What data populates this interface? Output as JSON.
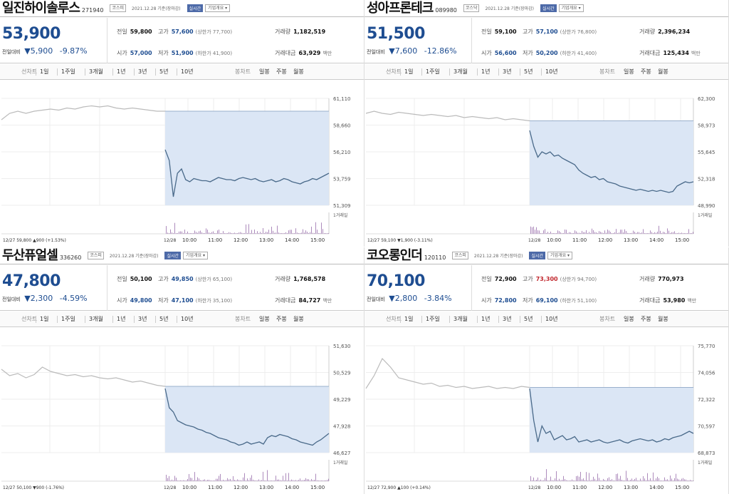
{
  "colors": {
    "price_blue": "#1e4d91",
    "up_red": "#c1272d",
    "fill": "#dbe6f5",
    "line": "#4a6a8a",
    "volume": "#8a5aa0"
  },
  "common": {
    "chart_tabs": [
      "선차트",
      "1일",
      "1주일",
      "3개월",
      "1년",
      "3년",
      "5년",
      "10년"
    ],
    "bar_tabs": [
      "봉차트",
      "일봉",
      "주봉",
      "월봉"
    ],
    "change_label": "전일대비",
    "vol_unit": "백만",
    "time_ticks": [
      "12/28",
      "10:00",
      "11:00",
      "12:00",
      "13:00",
      "14:00",
      "15:00"
    ],
    "stat_labels": {
      "prev": "전일",
      "high": "고가",
      "volume": "거래량",
      "open": "시가",
      "low": "저가",
      "amount": "거래대금"
    },
    "upper_label": "상한가",
    "lower_label": "하한가",
    "amount_unit": "백만"
  },
  "stocks": [
    {
      "name": "일진하이솔루스",
      "code": "271940",
      "market": "코스피",
      "date": "2021.12.28 기준(장마감)",
      "btn1": "실시간",
      "btn2": "기업개요 ▾",
      "price": "53,900",
      "change": "▼5,900",
      "rate": "-9.87%",
      "prev": "59,800",
      "high": "57,600",
      "upper": "(상한가 77,700)",
      "volume": "1,182,519",
      "open": "57,000",
      "low": "51,900",
      "lower": "(하한가 41,900)",
      "amount": "63,929",
      "y_ticks": [
        "61,110",
        "58,660",
        "56,210",
        "53,759",
        "51,309"
      ],
      "vol_label": "1거래일",
      "prev_info": "12/27 59,800 ▲900 (+1.53%)",
      "prev_line": [
        0.8,
        0.86,
        0.88,
        0.86,
        0.88,
        0.89,
        0.9,
        0.89,
        0.91,
        0.9,
        0.92,
        0.93,
        0.92,
        0.93,
        0.91,
        0.9,
        0.91,
        0.9,
        0.89,
        0.88,
        0.88
      ],
      "today_line": [
        0.52,
        0.42,
        0.08,
        0.3,
        0.34,
        0.24,
        0.22,
        0.25,
        0.24,
        0.23,
        0.23,
        0.22,
        0.24,
        0.26,
        0.25,
        0.24,
        0.24,
        0.23,
        0.25,
        0.26,
        0.25,
        0.24,
        0.25,
        0.23,
        0.22,
        0.23,
        0.24,
        0.22,
        0.23,
        0.25,
        0.24,
        0.22,
        0.21,
        0.2,
        0.22,
        0.23,
        0.25,
        0.24,
        0.26,
        0.28,
        0.3
      ],
      "prev_close": 0.88
    },
    {
      "name": "성아프론테크",
      "code": "089980",
      "market": "코스닥",
      "date": "2021.12.28 기준(장마감)",
      "btn1": "실시간",
      "btn2": "기업개요 ▾",
      "price": "51,500",
      "change": "▼7,600",
      "rate": "-12.86%",
      "prev": "59,100",
      "high": "57,100",
      "upper": "(상한가 76,800)",
      "volume": "2,396,234",
      "open": "56,600",
      "low": "50,200",
      "lower": "(하한가 41,400)",
      "amount": "125,434",
      "y_ticks": [
        "62,300",
        "58,973",
        "55,645",
        "52,318",
        "48,990"
      ],
      "vol_label": "1거래일",
      "prev_info": "12/27 59,100 ▼1,900 (-3.11%)",
      "prev_line": [
        0.86,
        0.88,
        0.86,
        0.85,
        0.87,
        0.86,
        0.85,
        0.84,
        0.85,
        0.84,
        0.83,
        0.84,
        0.82,
        0.83,
        0.82,
        0.81,
        0.82,
        0.8,
        0.81,
        0.8,
        0.79
      ],
      "today_line": [
        0.7,
        0.55,
        0.45,
        0.5,
        0.48,
        0.5,
        0.46,
        0.47,
        0.44,
        0.42,
        0.4,
        0.38,
        0.33,
        0.3,
        0.28,
        0.26,
        0.27,
        0.24,
        0.25,
        0.22,
        0.21,
        0.2,
        0.18,
        0.17,
        0.16,
        0.15,
        0.14,
        0.15,
        0.14,
        0.13,
        0.14,
        0.13,
        0.14,
        0.13,
        0.12,
        0.13,
        0.18,
        0.2,
        0.22,
        0.21,
        0.22
      ],
      "prev_close": 0.79
    },
    {
      "name": "두산퓨얼셀",
      "code": "336260",
      "market": "코스피",
      "date": "2021.12.28 기준(장마감)",
      "btn1": "실시간",
      "btn2": "기업개요 ▾",
      "price": "47,800",
      "change": "▼2,300",
      "rate": "-4.59%",
      "prev": "50,100",
      "high": "49,850",
      "upper": "(상한가 65,100)",
      "volume": "1,768,578",
      "open": "49,800",
      "low": "47,100",
      "lower": "(하한가 35,100)",
      "amount": "84,727",
      "y_ticks": [
        "51,630",
        "50,529",
        "49,229",
        "47,928",
        "46,627"
      ],
      "vol_label": "1거래일",
      "prev_info": "12/27 50,100 ▼900 (-1.76%)",
      "prev_line": [
        0.78,
        0.72,
        0.74,
        0.7,
        0.73,
        0.8,
        0.76,
        0.74,
        0.72,
        0.73,
        0.71,
        0.72,
        0.7,
        0.69,
        0.7,
        0.68,
        0.66,
        0.67,
        0.65,
        0.63,
        0.62
      ],
      "today_line": [
        0.6,
        0.42,
        0.38,
        0.3,
        0.28,
        0.26,
        0.25,
        0.24,
        0.22,
        0.21,
        0.19,
        0.18,
        0.16,
        0.14,
        0.13,
        0.12,
        0.1,
        0.09,
        0.07,
        0.08,
        0.1,
        0.08,
        0.09,
        0.1,
        0.08,
        0.14,
        0.16,
        0.15,
        0.17,
        0.16,
        0.15,
        0.13,
        0.12,
        0.1,
        0.09,
        0.08,
        0.07,
        0.1,
        0.12,
        0.15,
        0.18
      ],
      "prev_close": 0.62
    },
    {
      "name": "코오롱인더",
      "code": "120110",
      "market": "코스피",
      "date": "2021.12.28 기준(장마감)",
      "btn1": "실시간",
      "btn2": "기업개요 ▾",
      "price": "70,100",
      "change": "▼2,800",
      "rate": "-3.84%",
      "prev": "72,900",
      "high": "73,300",
      "upper": "(상한가 94,700)",
      "volume": "770,973",
      "open": "72,800",
      "low": "69,100",
      "lower": "(하한가 51,100)",
      "amount": "53,980",
      "y_ticks": [
        "75,770",
        "74,056",
        "72,322",
        "70,597",
        "68,873"
      ],
      "vol_label": "1거래일",
      "prev_info": "12/27 72,900 ▲100 (+0.14%)",
      "prev_line": [
        0.6,
        0.72,
        0.88,
        0.8,
        0.7,
        0.68,
        0.66,
        0.64,
        0.65,
        0.62,
        0.63,
        0.61,
        0.62,
        0.6,
        0.61,
        0.62,
        0.6,
        0.61,
        0.6,
        0.62,
        0.61
      ],
      "today_line": [
        0.6,
        0.3,
        0.1,
        0.25,
        0.18,
        0.2,
        0.12,
        0.14,
        0.16,
        0.12,
        0.13,
        0.15,
        0.1,
        0.11,
        0.12,
        0.1,
        0.11,
        0.12,
        0.1,
        0.09,
        0.1,
        0.11,
        0.12,
        0.1,
        0.09,
        0.11,
        0.12,
        0.13,
        0.12,
        0.11,
        0.12,
        0.1,
        0.11,
        0.13,
        0.12,
        0.14,
        0.15,
        0.16,
        0.18,
        0.2,
        0.18
      ],
      "prev_close": 0.61
    }
  ]
}
